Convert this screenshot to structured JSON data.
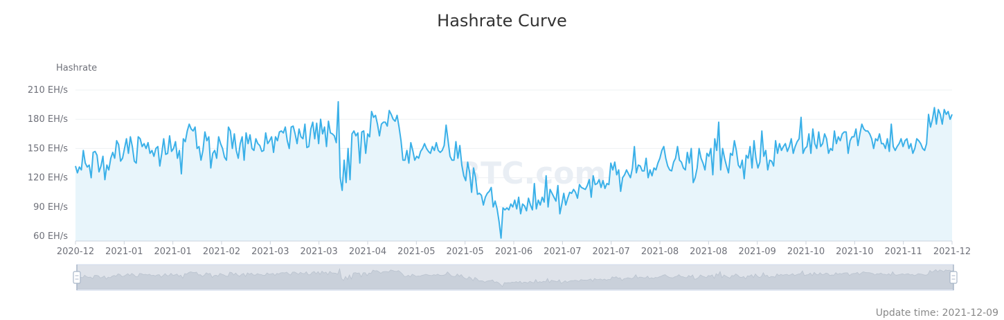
{
  "page": {
    "update_time": "Update time: 2021-12-09"
  },
  "chart_data": {
    "type": "area",
    "title": "Hashrate Curve",
    "ylabel": "Hashrate",
    "xlabel": "",
    "unit": "EH/s",
    "ylim": [
      55,
      210
    ],
    "y_ticks": [
      60,
      90,
      120,
      150,
      180,
      210
    ],
    "y_tick_labels": [
      "60 EH/s",
      "90 EH/s",
      "120 EH/s",
      "150 EH/s",
      "180 EH/s",
      "210 EH/s"
    ],
    "x_tick_labels": [
      "2020-12",
      "2021-01",
      "2021-01",
      "2021-02",
      "2021-03",
      "2021-03",
      "2021-04",
      "2021-05",
      "2021-05",
      "2021-06",
      "2021-07",
      "2021-07",
      "2021-08",
      "2021-08",
      "2021-09",
      "2021-10",
      "2021-10",
      "2021-11",
      "2021-12"
    ],
    "grid": true,
    "watermark": "BTC.com",
    "colors": {
      "line": "#3ab0e8",
      "area": "#e8f5fb",
      "grid": "#eef0f3",
      "axis": "#ccd3dc",
      "slider_bg": "#dfe3ea",
      "slider_handle": "#a8b6c8"
    },
    "series": [
      {
        "values": [
          132,
          125,
          131,
          128,
          148,
          135,
          131,
          133,
          120,
          146,
          147,
          143,
          126,
          132,
          142,
          118,
          133,
          128,
          140,
          146,
          140,
          158,
          154,
          137,
          140,
          150,
          160,
          145,
          162,
          152,
          137,
          135,
          162,
          160,
          152,
          155,
          150,
          156,
          145,
          148,
          142,
          150,
          152,
          132,
          145,
          160,
          144,
          145,
          163,
          147,
          150,
          157,
          140,
          148,
          124,
          160,
          157,
          168,
          175,
          170,
          168,
          172,
          150,
          152,
          138,
          148,
          167,
          158,
          162,
          130,
          145,
          148,
          140,
          162,
          155,
          150,
          141,
          138,
          172,
          168,
          150,
          165,
          148,
          140,
          155,
          162,
          138,
          166,
          155,
          164,
          150,
          148,
          160,
          155,
          153,
          147,
          148,
          166,
          155,
          158,
          162,
          146,
          162,
          158,
          167,
          168,
          166,
          172,
          158,
          150,
          172,
          173,
          165,
          155,
          170,
          162,
          160,
          175,
          151,
          152,
          170,
          177,
          160,
          176,
          155,
          180,
          165,
          172,
          152,
          178,
          166,
          165,
          163,
          156,
          198,
          120,
          107,
          138,
          115,
          150,
          118,
          165,
          168,
          163,
          166,
          135,
          167,
          168,
          145,
          165,
          162,
          188,
          182,
          184,
          175,
          163,
          175,
          177,
          177,
          173,
          189,
          185,
          180,
          178,
          184,
          172,
          158,
          138,
          138,
          148,
          135,
          156,
          148,
          138,
          142,
          140,
          147,
          150,
          155,
          150,
          147,
          145,
          152,
          148,
          156,
          148,
          146,
          148,
          153,
          174,
          158,
          142,
          138,
          138,
          157,
          140,
          153,
          133,
          122,
          117,
          136,
          125,
          105,
          130,
          120,
          103,
          104,
          102,
          92,
          100,
          104,
          106,
          110,
          90,
          96,
          88,
          75,
          58,
          89,
          87,
          89,
          87,
          93,
          90,
          97,
          88,
          100,
          83,
          93,
          91,
          86,
          99,
          92,
          87,
          114,
          88,
          97,
          92,
          100,
          95,
          122,
          90,
          108,
          104,
          100,
          96,
          112,
          83,
          93,
          104,
          92,
          99,
          105,
          104,
          108,
          105,
          99,
          113,
          110,
          109,
          108,
          112,
          118,
          100,
          122,
          113,
          114,
          118,
          110,
          117,
          109,
          114,
          113,
          135,
          128,
          136,
          123,
          128,
          106,
          120,
          123,
          128,
          124,
          120,
          130,
          152,
          125,
          133,
          132,
          127,
          127,
          140,
          120,
          128,
          122,
          130,
          128,
          135,
          140,
          148,
          152,
          140,
          132,
          128,
          127,
          136,
          140,
          152,
          138,
          136,
          130,
          128,
          146,
          135,
          150,
          115,
          120,
          130,
          150,
          140,
          135,
          128,
          145,
          142,
          150,
          123,
          160,
          148,
          177,
          128,
          150,
          140,
          132,
          125,
          145,
          143,
          158,
          148,
          133,
          130,
          138,
          119,
          143,
          140,
          152,
          130,
          158,
          140,
          130,
          136,
          168,
          142,
          148,
          128,
          138,
          137,
          132,
          158,
          145,
          155,
          148,
          152,
          155,
          147,
          152,
          160,
          145,
          152,
          157,
          160,
          182,
          145,
          150,
          152,
          165,
          145,
          170,
          155,
          150,
          167,
          152,
          155,
          165,
          160,
          145,
          150,
          148,
          168,
          155,
          162,
          158,
          165,
          167,
          167,
          145,
          158,
          162,
          162,
          170,
          153,
          165,
          175,
          170,
          168,
          168,
          165,
          160,
          150,
          160,
          158,
          165,
          155,
          155,
          150,
          160,
          147,
          175,
          152,
          148,
          152,
          155,
          160,
          152,
          158,
          160,
          150,
          155,
          145,
          150,
          160,
          158,
          155,
          150,
          148,
          155,
          185,
          172,
          180,
          192,
          175,
          190,
          185,
          175,
          190,
          185,
          188,
          180,
          185
        ]
      }
    ]
  }
}
